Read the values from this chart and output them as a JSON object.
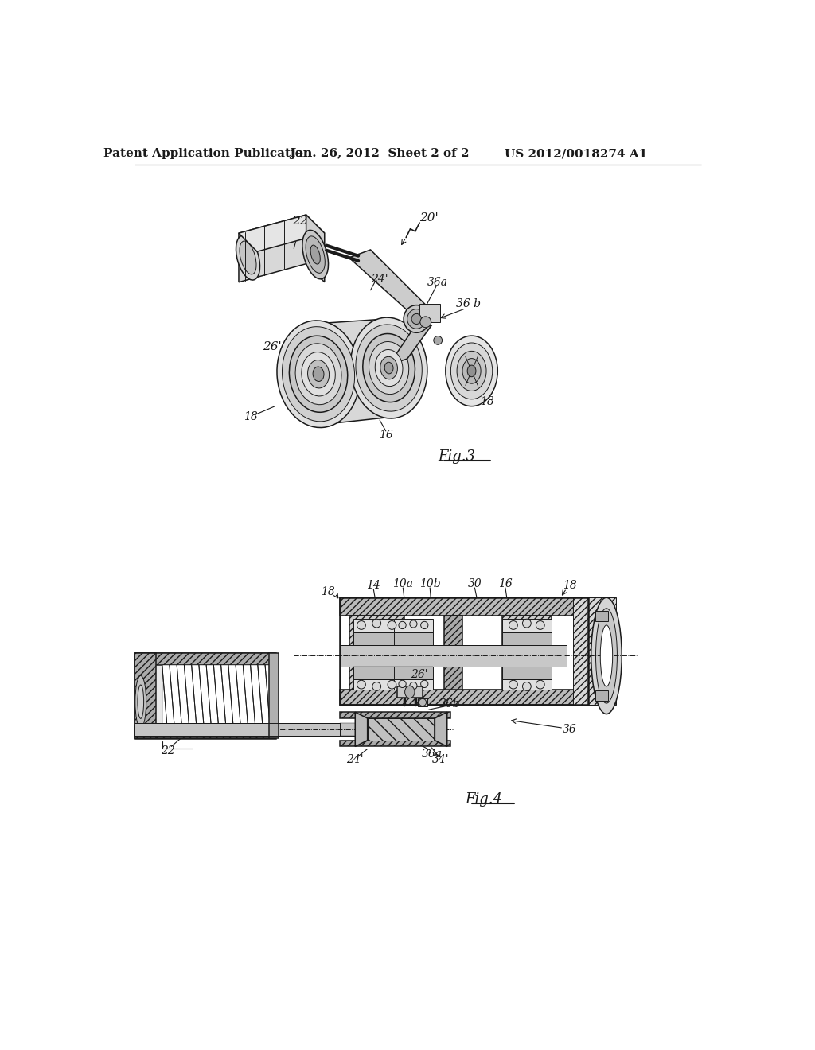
{
  "bg_color": "#ffffff",
  "header_left": "Patent Application Publication",
  "header_center": "Jan. 26, 2012  Sheet 2 of 2",
  "header_right": "US 2012/0018274 A1",
  "line_color": "#1a1a1a",
  "fig3_label": "Fig.3",
  "fig4_label": "Fig.4"
}
